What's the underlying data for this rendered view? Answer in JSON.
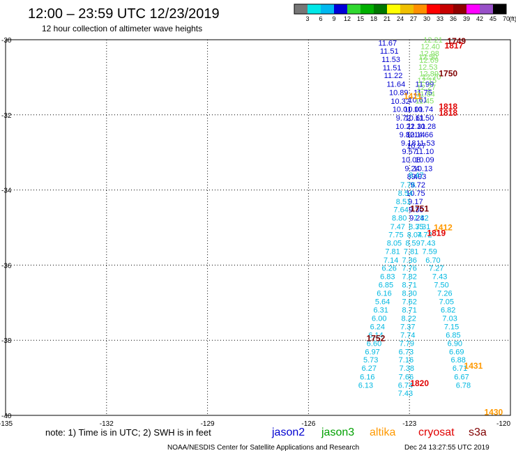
{
  "header": {
    "title": "12:00 – 23:59 UTC 12/23/2019",
    "subtitle": "12 hour collection of altimeter wave heights"
  },
  "color_scale": {
    "values": [
      "3",
      "6",
      "9",
      "12",
      "15",
      "18",
      "21",
      "24",
      "27",
      "30",
      "33",
      "36",
      "39",
      "42",
      "45",
      "70"
    ],
    "unit": "(ft)",
    "colors": [
      "#777777",
      "#00e8e8",
      "#00b8f0",
      "#0000d8",
      "#30d830",
      "#00b000",
      "#007800",
      "#ffff00",
      "#f0c000",
      "#ff9000",
      "#ff0000",
      "#c80000",
      "#900000",
      "#ff00ff",
      "#9850c8",
      "#000000"
    ]
  },
  "footer": {
    "note": "note:  1) Time is in UTC; 2) SWH is in feet",
    "credit": "NOAA/NESDIS Center for Satellite Applications and Research",
    "timestamp": "Dec 24 13:27:55 UTC 2019"
  },
  "satellites": [
    {
      "name": "jason2",
      "color": "#0000d0"
    },
    {
      "name": "jason3",
      "color": "#00a000"
    },
    {
      "name": "altika",
      "color": "#ff9900"
    },
    {
      "name": "cryosat",
      "color": "#e00000"
    },
    {
      "name": "s3a",
      "color": "#800000"
    }
  ],
  "chart_data": {
    "type": "scatter",
    "xlabel": "",
    "ylabel": "",
    "xlim": [
      -135,
      -120
    ],
    "ylim": [
      -40,
      -30
    ],
    "x_ticks": [
      "-135",
      "-132",
      "-129",
      "-126",
      "-123",
      "-120"
    ],
    "y_ticks": [
      "-30",
      "-32",
      "-34",
      "-36",
      "-38",
      "-40"
    ],
    "grid": true,
    "series": [
      {
        "name": "jason2",
        "color": "#0000d0",
        "points": [
          {
            "x": -123.65,
            "y": -30.08,
            "v": "11.67"
          },
          {
            "x": -123.6,
            "y": -30.3,
            "v": "11.51"
          },
          {
            "x": -123.55,
            "y": -30.52,
            "v": "11.53"
          },
          {
            "x": -123.52,
            "y": -30.74,
            "v": "11.51"
          },
          {
            "x": -123.48,
            "y": -30.95,
            "v": "11.22"
          },
          {
            "x": -123.4,
            "y": -31.18,
            "v": "11.64"
          },
          {
            "x": -123.32,
            "y": -31.4,
            "v": "10.89"
          },
          {
            "x": -123.27,
            "y": -31.63,
            "v": "10.32"
          },
          {
            "x": -123.22,
            "y": -31.85,
            "v": "10.01"
          },
          {
            "x": -123.18,
            "y": -32.08,
            "v": "9.72"
          },
          {
            "x": -123.13,
            "y": -32.3,
            "v": "10.22"
          },
          {
            "x": -123.08,
            "y": -32.52,
            "v": "9.82"
          },
          {
            "x": -123.03,
            "y": -32.75,
            "v": "9.18"
          },
          {
            "x": -123.0,
            "y": -32.97,
            "v": "9.57"
          },
          {
            "x": -122.95,
            "y": -33.19,
            "v": "10.08"
          },
          {
            "x": -122.92,
            "y": -33.42,
            "v": "9.24"
          },
          {
            "x": -122.85,
            "y": -33.64,
            "v": "8.40"
          },
          {
            "x": -122.8,
            "y": -32.82,
            "v": "10.27"
          },
          {
            "x": -122.82,
            "y": -32.52,
            "v": "10.14"
          },
          {
            "x": -122.8,
            "y": -32.3,
            "v": "11.31"
          },
          {
            "x": -122.85,
            "y": -32.08,
            "v": "10.61"
          },
          {
            "x": -122.88,
            "y": -31.85,
            "v": "10.01"
          },
          {
            "x": -122.75,
            "y": -31.6,
            "v": "10.61"
          },
          {
            "x": -122.6,
            "y": -31.4,
            "v": "11.75"
          },
          {
            "x": -122.55,
            "y": -31.18,
            "v": "11.99"
          },
          {
            "x": -122.58,
            "y": -31.85,
            "v": "10.74"
          },
          {
            "x": -122.55,
            "y": -32.08,
            "v": "11.50"
          },
          {
            "x": -122.5,
            "y": -32.3,
            "v": "10.28"
          },
          {
            "x": -122.58,
            "y": -32.52,
            "v": "14.66"
          },
          {
            "x": -122.52,
            "y": -32.75,
            "v": "11.53"
          },
          {
            "x": -122.55,
            "y": -32.97,
            "v": "11.10"
          },
          {
            "x": -122.55,
            "y": -33.19,
            "v": "10.09"
          },
          {
            "x": -122.6,
            "y": -33.42,
            "v": "10.13"
          },
          {
            "x": -122.72,
            "y": -33.64,
            "v": "9.93"
          },
          {
            "x": -122.75,
            "y": -33.86,
            "v": "9.72"
          },
          {
            "x": -122.82,
            "y": -34.08,
            "v": "10.75"
          },
          {
            "x": -122.82,
            "y": -34.3,
            "v": "9.17"
          },
          {
            "x": -122.8,
            "y": -34.52,
            "v": "9.30"
          },
          {
            "x": -122.78,
            "y": -34.74,
            "v": "9.24"
          }
        ]
      },
      {
        "name": "jason3",
        "color": "#80e060",
        "points": [
          {
            "x": -122.3,
            "y": -30.0,
            "v": "12.21"
          },
          {
            "x": -122.38,
            "y": -30.18,
            "v": "12.40"
          },
          {
            "x": -122.4,
            "y": -30.36,
            "v": "12.98"
          },
          {
            "x": -122.42,
            "y": -30.54,
            "v": "12.69"
          },
          {
            "x": -122.45,
            "y": -30.72,
            "v": "12.53"
          },
          {
            "x": -122.42,
            "y": -30.9,
            "v": "12.89"
          },
          {
            "x": -122.48,
            "y": -31.08,
            "v": "12.15"
          },
          {
            "x": -122.5,
            "y": -31.26,
            "v": "12.27"
          },
          {
            "x": -122.52,
            "y": -31.44,
            "v": "11.84"
          },
          {
            "x": -122.55,
            "y": -31.62,
            "v": "11.45"
          },
          {
            "x": -122.45,
            "y": -30.45,
            "v": "12.50"
          },
          {
            "x": -122.35,
            "y": -30.98,
            "v": "12.70"
          }
        ]
      },
      {
        "name": "altika",
        "color": "#00b8e0",
        "points": [
          {
            "x": -122.8,
            "y": -33.6,
            "v": "8.47"
          },
          {
            "x": -123.05,
            "y": -33.86,
            "v": "7.76"
          },
          {
            "x": -123.12,
            "y": -34.08,
            "v": "8.54"
          },
          {
            "x": -123.18,
            "y": -34.3,
            "v": "8.51"
          },
          {
            "x": -123.25,
            "y": -34.52,
            "v": "7.64"
          },
          {
            "x": -123.3,
            "y": -34.74,
            "v": "8.80"
          },
          {
            "x": -123.35,
            "y": -34.97,
            "v": "7.47"
          },
          {
            "x": -123.4,
            "y": -35.19,
            "v": "7.75"
          },
          {
            "x": -123.45,
            "y": -35.41,
            "v": "8.05"
          },
          {
            "x": -123.5,
            "y": -35.63,
            "v": "7.81"
          },
          {
            "x": -123.55,
            "y": -35.86,
            "v": "7.14"
          },
          {
            "x": -123.6,
            "y": -36.08,
            "v": "6.26"
          },
          {
            "x": -123.65,
            "y": -36.3,
            "v": "6.83"
          },
          {
            "x": -123.7,
            "y": -36.52,
            "v": "6.85"
          },
          {
            "x": -123.75,
            "y": -36.74,
            "v": "6.16"
          },
          {
            "x": -123.8,
            "y": -36.97,
            "v": "5.64"
          },
          {
            "x": -123.85,
            "y": -37.19,
            "v": "6.31"
          },
          {
            "x": -123.9,
            "y": -37.41,
            "v": "6.00"
          },
          {
            "x": -123.95,
            "y": -37.63,
            "v": "6.24"
          },
          {
            "x": -124.0,
            "y": -37.86,
            "v": "6.14"
          },
          {
            "x": -124.05,
            "y": -38.08,
            "v": "6.60"
          },
          {
            "x": -124.1,
            "y": -38.3,
            "v": "6.97"
          },
          {
            "x": -124.15,
            "y": -38.52,
            "v": "5.73"
          },
          {
            "x": -124.2,
            "y": -38.74,
            "v": "6.27"
          },
          {
            "x": -124.25,
            "y": -38.97,
            "v": "6.16"
          },
          {
            "x": -124.3,
            "y": -39.19,
            "v": "6.13"
          },
          {
            "x": -122.65,
            "y": -34.74,
            "v": "7.82"
          },
          {
            "x": -122.6,
            "y": -34.97,
            "v": "7.31"
          },
          {
            "x": -122.55,
            "y": -35.19,
            "v": "7.72"
          },
          {
            "x": -122.45,
            "y": -35.41,
            "v": "7.43"
          },
          {
            "x": -122.4,
            "y": -35.63,
            "v": "7.59"
          },
          {
            "x": -122.3,
            "y": -35.86,
            "v": "6.70"
          },
          {
            "x": -122.2,
            "y": -36.08,
            "v": "7.27"
          },
          {
            "x": -122.1,
            "y": -36.3,
            "v": "7.43"
          },
          {
            "x": -122.05,
            "y": -36.52,
            "v": "7.50"
          },
          {
            "x": -121.95,
            "y": -36.74,
            "v": "7.26"
          },
          {
            "x": -121.9,
            "y": -36.97,
            "v": "7.05"
          },
          {
            "x": -121.85,
            "y": -37.19,
            "v": "6.82"
          },
          {
            "x": -121.8,
            "y": -37.41,
            "v": "7.03"
          },
          {
            "x": -121.75,
            "y": -37.63,
            "v": "7.15"
          },
          {
            "x": -121.7,
            "y": -37.86,
            "v": "6.85"
          },
          {
            "x": -121.65,
            "y": -38.08,
            "v": "6.90"
          },
          {
            "x": -121.6,
            "y": -38.3,
            "v": "6.69"
          },
          {
            "x": -121.55,
            "y": -38.52,
            "v": "6.88"
          },
          {
            "x": -121.5,
            "y": -38.74,
            "v": "6.71"
          },
          {
            "x": -121.45,
            "y": -38.97,
            "v": "6.67"
          },
          {
            "x": -121.4,
            "y": -39.19,
            "v": "6.78"
          },
          {
            "x": -122.8,
            "y": -34.97,
            "v": "8.35"
          },
          {
            "x": -122.85,
            "y": -35.19,
            "v": "8.04"
          },
          {
            "x": -122.9,
            "y": -35.41,
            "v": "8.59"
          },
          {
            "x": -122.95,
            "y": -35.63,
            "v": "7.81"
          },
          {
            "x": -123.0,
            "y": -35.86,
            "v": "7.36"
          },
          {
            "x": -123.0,
            "y": -36.08,
            "v": "7.76"
          },
          {
            "x": -123.0,
            "y": -36.3,
            "v": "7.82"
          },
          {
            "x": -123.0,
            "y": -36.52,
            "v": "8.71"
          },
          {
            "x": -123.0,
            "y": -36.74,
            "v": "8.30"
          },
          {
            "x": -123.0,
            "y": -36.97,
            "v": "7.62"
          },
          {
            "x": -123.0,
            "y": -37.19,
            "v": "8.71"
          },
          {
            "x": -123.02,
            "y": -37.41,
            "v": "8.22"
          },
          {
            "x": -123.05,
            "y": -37.63,
            "v": "7.37"
          },
          {
            "x": -123.05,
            "y": -37.86,
            "v": "7.74"
          },
          {
            "x": -123.08,
            "y": -38.08,
            "v": "7.79"
          },
          {
            "x": -123.1,
            "y": -38.3,
            "v": "6.73"
          },
          {
            "x": -123.1,
            "y": -38.52,
            "v": "7.16"
          },
          {
            "x": -123.08,
            "y": -38.74,
            "v": "7.38"
          },
          {
            "x": -123.1,
            "y": -38.97,
            "v": "7.66"
          },
          {
            "x": -123.12,
            "y": -39.19,
            "v": "6.74"
          },
          {
            "x": -123.12,
            "y": -39.41,
            "v": "7.43"
          }
        ]
      }
    ],
    "time_labels": [
      {
        "x": -121.6,
        "y": -30.04,
        "text": "1749",
        "color": "#800000"
      },
      {
        "x": -121.68,
        "y": -30.16,
        "text": "1817",
        "color": "#e00000"
      },
      {
        "x": -121.85,
        "y": -30.9,
        "text": "1750",
        "color": "#800000"
      },
      {
        "x": -122.9,
        "y": -31.5,
        "text": "1411",
        "color": "#ff9900"
      },
      {
        "x": -121.85,
        "y": -31.78,
        "text": "1818",
        "color": "#e00000"
      },
      {
        "x": -121.85,
        "y": -31.95,
        "text": "1818",
        "color": "#e00000"
      },
      {
        "x": -122.7,
        "y": -34.5,
        "text": "1751",
        "color": "#800000"
      },
      {
        "x": -122.0,
        "y": -35.0,
        "text": "1412",
        "color": "#ff9900"
      },
      {
        "x": -122.2,
        "y": -35.15,
        "text": "1819",
        "color": "#e00000"
      },
      {
        "x": -124.0,
        "y": -37.95,
        "text": "1752",
        "color": "#800000"
      },
      {
        "x": -121.1,
        "y": -38.68,
        "text": "1431",
        "color": "#ff9900"
      },
      {
        "x": -122.7,
        "y": -39.15,
        "text": "1820",
        "color": "#e00000"
      },
      {
        "x": -120.5,
        "y": -39.92,
        "text": "1430",
        "color": "#ff9900"
      }
    ]
  }
}
